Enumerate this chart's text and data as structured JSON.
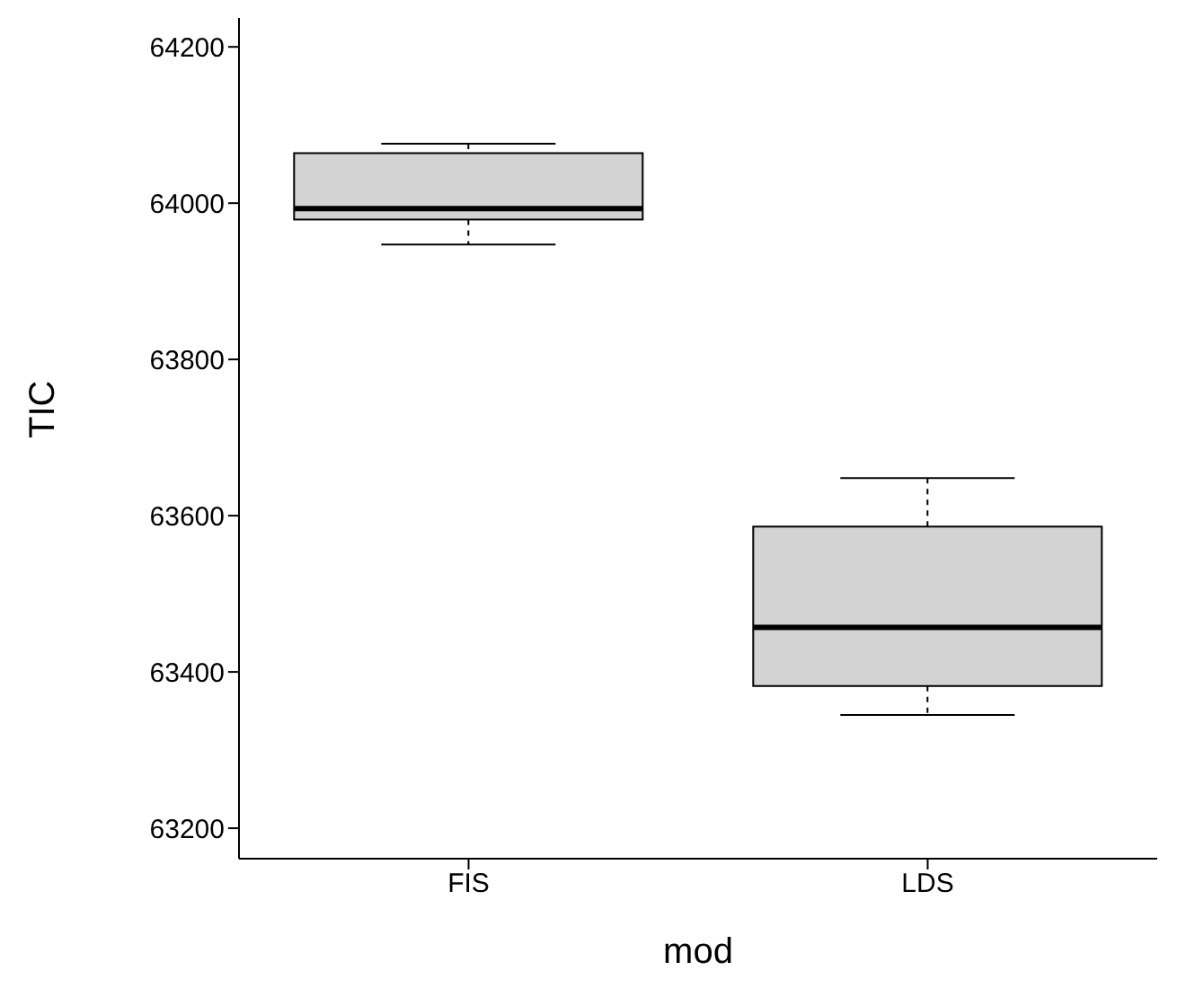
{
  "chart_data": {
    "type": "box",
    "xlabel": "mod",
    "ylabel": "TIC",
    "categories": [
      "FIS",
      "LDS"
    ],
    "boxes": [
      {
        "low": 63947,
        "q1": 63979,
        "median": 63993,
        "q3": 64064,
        "high": 64076
      },
      {
        "low": 63345,
        "q1": 63382,
        "median": 63457,
        "q3": 63586,
        "high": 63648
      }
    ],
    "color": "#d3d3d3",
    "ylim": [
      63161,
      64237
    ],
    "yticks": [
      63200,
      63400,
      63600,
      63800,
      64000,
      64200
    ],
    "grid": false,
    "legend": false
  }
}
